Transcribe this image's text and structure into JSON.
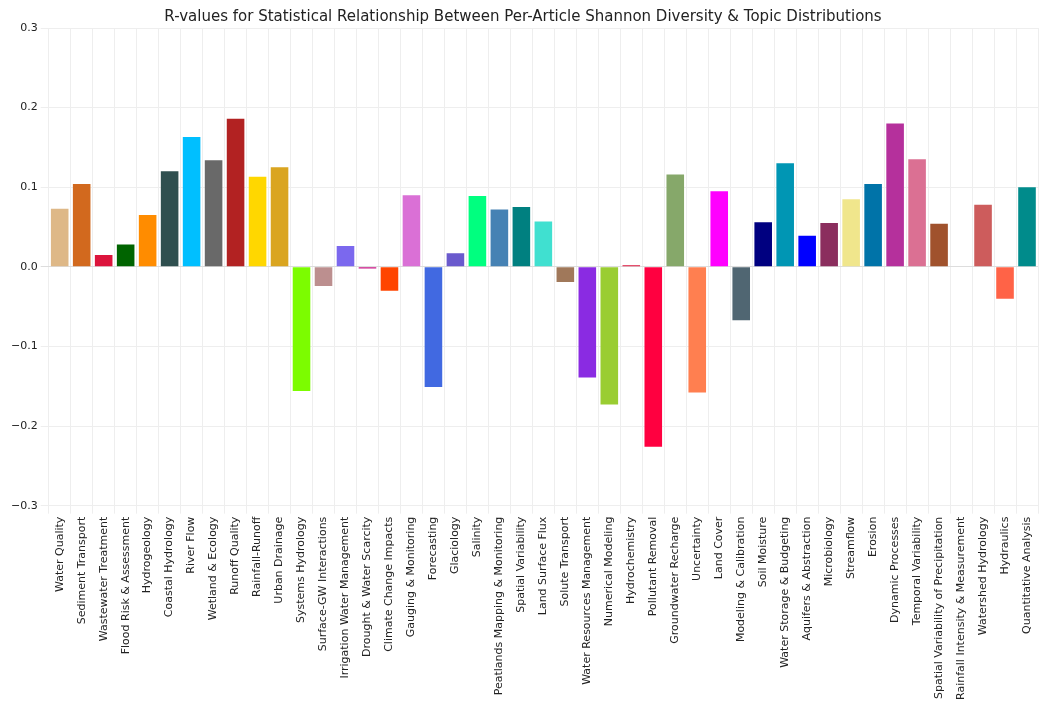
{
  "chart_data": {
    "type": "bar",
    "title": "R-values for Statistical Relationship Between Per-Article Shannon Diversity & Topic Distributions",
    "categories": [
      "Water Quality",
      "Sediment Transport",
      "Wastewater Treatment",
      "Flood Risk & Assessment",
      "Hydrogeology",
      "Coastal Hydrology",
      "River Flow",
      "Wetland & Ecology",
      "Runoff Quality",
      "Rainfall-Runoff",
      "Urban Drainage",
      "Systems Hydrology",
      "Surface-GW Interactions",
      "Irrigation Water Management",
      "Drought & Water Scarcity",
      "Climate Change Impacts",
      "Gauging & Monitoring",
      "Forecasting",
      "Glaciology",
      "Salinity",
      "Peatlands Mapping & Monitoring",
      "Spatial Variability",
      "Land Surface Flux",
      "Solute Transport",
      "Water Resources Management",
      "Numerical Modeling",
      "Hydrochemistry",
      "Pollutant Removal",
      "Groundwater Recharge",
      "Uncertainty",
      "Land Cover",
      "Modeling & Calibration",
      "Soil Moisture",
      "Water Storage & Budgeting",
      "Aquifers & Abstraction",
      "Microbiology",
      "Streamflow",
      "Erosion",
      "Dynamic Processes",
      "Temporal Variability",
      "Spatial Variability of Precipitation",
      "Rainfall Intensity & Measurement",
      "Watershed Hydrology",
      "Hydraulics",
      "Quantitative Analysis"
    ],
    "values": [
      0.073,
      0.104,
      0.015,
      0.028,
      0.065,
      0.12,
      0.163,
      0.134,
      0.186,
      0.113,
      0.125,
      -0.156,
      -0.024,
      0.026,
      -0.002,
      -0.03,
      0.09,
      -0.151,
      0.017,
      0.089,
      0.072,
      0.075,
      0.057,
      -0.019,
      -0.139,
      -0.173,
      0.002,
      -0.226,
      0.116,
      -0.158,
      0.095,
      -0.067,
      0.056,
      0.13,
      0.039,
      0.055,
      0.085,
      0.104,
      0.18,
      0.135,
      0.054,
      0.0,
      0.078,
      -0.04,
      0.1
    ],
    "colors": [
      "#deb887",
      "#d2691e",
      "#dc143c",
      "#006400",
      "#ff8c00",
      "#2f4f4f",
      "#00bfff",
      "#696969",
      "#b22222",
      "#ffd700",
      "#daa520",
      "#7cfc00",
      "#bc8f8f",
      "#7b68ee",
      "#c71585",
      "#ff4500",
      "#da70d6",
      "#4169e1",
      "#6a5acd",
      "#00ff7f",
      "#4682b4",
      "#008080",
      "#40e0d0",
      "#a0785a",
      "#8a2be2",
      "#9acd32",
      "#dc143c",
      "#ff0040",
      "#86a86a",
      "#ff7f50",
      "#ff00ff",
      "#506672",
      "#000080",
      "#0096b4",
      "#0000ff",
      "#8b2e5e",
      "#f0e68c",
      "#0073a8",
      "#b5309c",
      "#db7093",
      "#a0522d",
      "#ffffff",
      "#cd5c5c",
      "#ff6347",
      "#008b8b"
    ],
    "ylim": [
      -0.3,
      0.3
    ],
    "yticks": [
      {
        "value": -0.3,
        "label": "−0.3"
      },
      {
        "value": -0.2,
        "label": "−0.2"
      },
      {
        "value": -0.1,
        "label": "−0.1"
      },
      {
        "value": 0,
        "label": "0.0"
      },
      {
        "value": 0.1,
        "label": "0.1"
      },
      {
        "value": 0.2,
        "label": "0.2"
      },
      {
        "value": 0.3,
        "label": "0.3"
      }
    ],
    "grid": true
  }
}
